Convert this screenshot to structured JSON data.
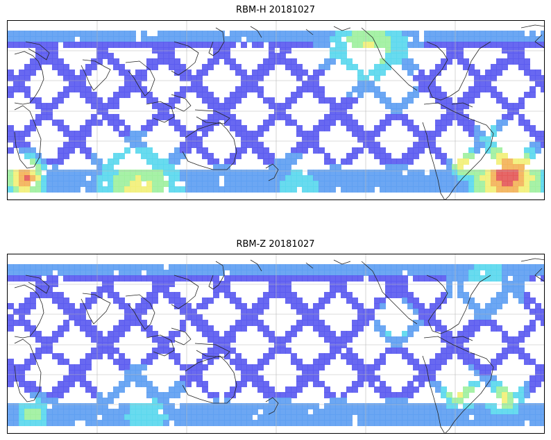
{
  "figure": {
    "panels": [
      {
        "title": "RBM-H 20181027",
        "variable": "RBM-H",
        "date": "20181027"
      },
      {
        "title": "RBM-Z 20181027",
        "variable": "RBM-Z",
        "date": "20181027"
      }
    ],
    "projection": "equirectangular",
    "grid": true,
    "colormap": [
      "#5b5bf0",
      "#5fa0f2",
      "#5bd8ee",
      "#a0f0a0",
      "#f2f07a",
      "#f3b35a",
      "#e45a5a"
    ]
  }
}
